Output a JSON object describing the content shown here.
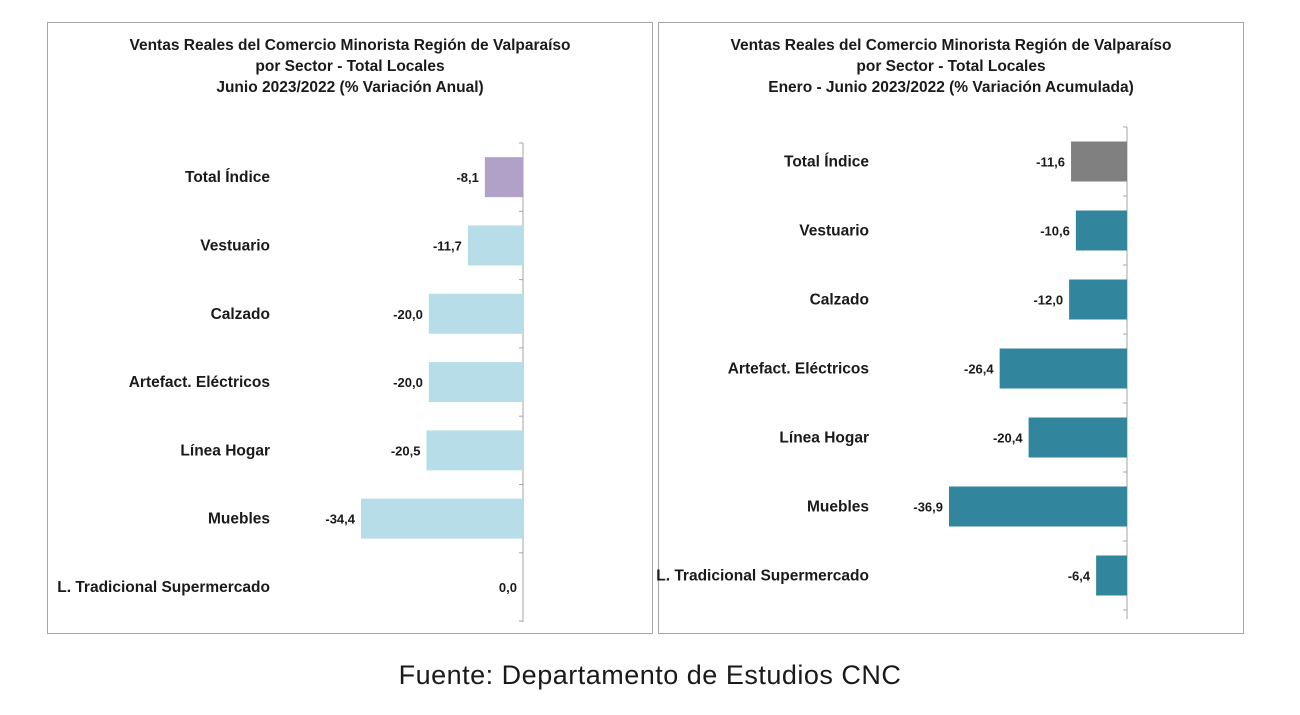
{
  "chart_data": [
    {
      "type": "bar",
      "orientation": "horizontal",
      "title_lines": [
        "Ventas Reales del Comercio Minorista Región de Valparaíso",
        "por Sector - Total Locales",
        "Junio 2023/2022 (% Variación Anual)"
      ],
      "categories": [
        "Total Índice",
        "Vestuario",
        "Calzado",
        "Artefact. Eléctricos",
        "Línea Hogar",
        "Muebles",
        "L. Tradicional Supermercado"
      ],
      "values": [
        -8.1,
        -11.7,
        -20.0,
        -20.0,
        -20.5,
        -34.4,
        0.0
      ],
      "value_labels": [
        "-8,1",
        "-11,7",
        "-20,0",
        "-20,0",
        "-20,5",
        "-34,4",
        "0,0"
      ],
      "bar_colors": [
        "#b1a0c7",
        "#b7dee8",
        "#b7dee8",
        "#b7dee8",
        "#b7dee8",
        "#b7dee8",
        "#b7dee8"
      ],
      "xlim": [
        -34.4,
        0
      ],
      "legend": "none",
      "grid": false
    },
    {
      "type": "bar",
      "orientation": "horizontal",
      "title_lines": [
        "Ventas Reales del Comercio Minorista Región de Valparaíso",
        "por Sector  - Total Locales",
        "Enero - Junio 2023/2022 (% Variación Acumulada)"
      ],
      "categories": [
        "Total Índice",
        "Vestuario",
        "Calzado",
        "Artefact. Eléctricos",
        "Línea Hogar",
        "Muebles",
        "L. Tradicional Supermercado"
      ],
      "values": [
        -11.6,
        -10.6,
        -12.0,
        -26.4,
        -20.4,
        -36.9,
        -6.4
      ],
      "value_labels": [
        "-11,6",
        "-10,6",
        "-12,0",
        "-26,4",
        "-20,4",
        "-36,9",
        "-6,4"
      ],
      "bar_colors": [
        "#808080",
        "#31859c",
        "#31859c",
        "#31859c",
        "#31859c",
        "#31859c",
        "#31859c"
      ],
      "xlim": [
        -36.9,
        0
      ],
      "legend": "none",
      "grid": false
    }
  ],
  "footer": {
    "source": "Fuente:  Departamento  de Estudios  CNC"
  }
}
